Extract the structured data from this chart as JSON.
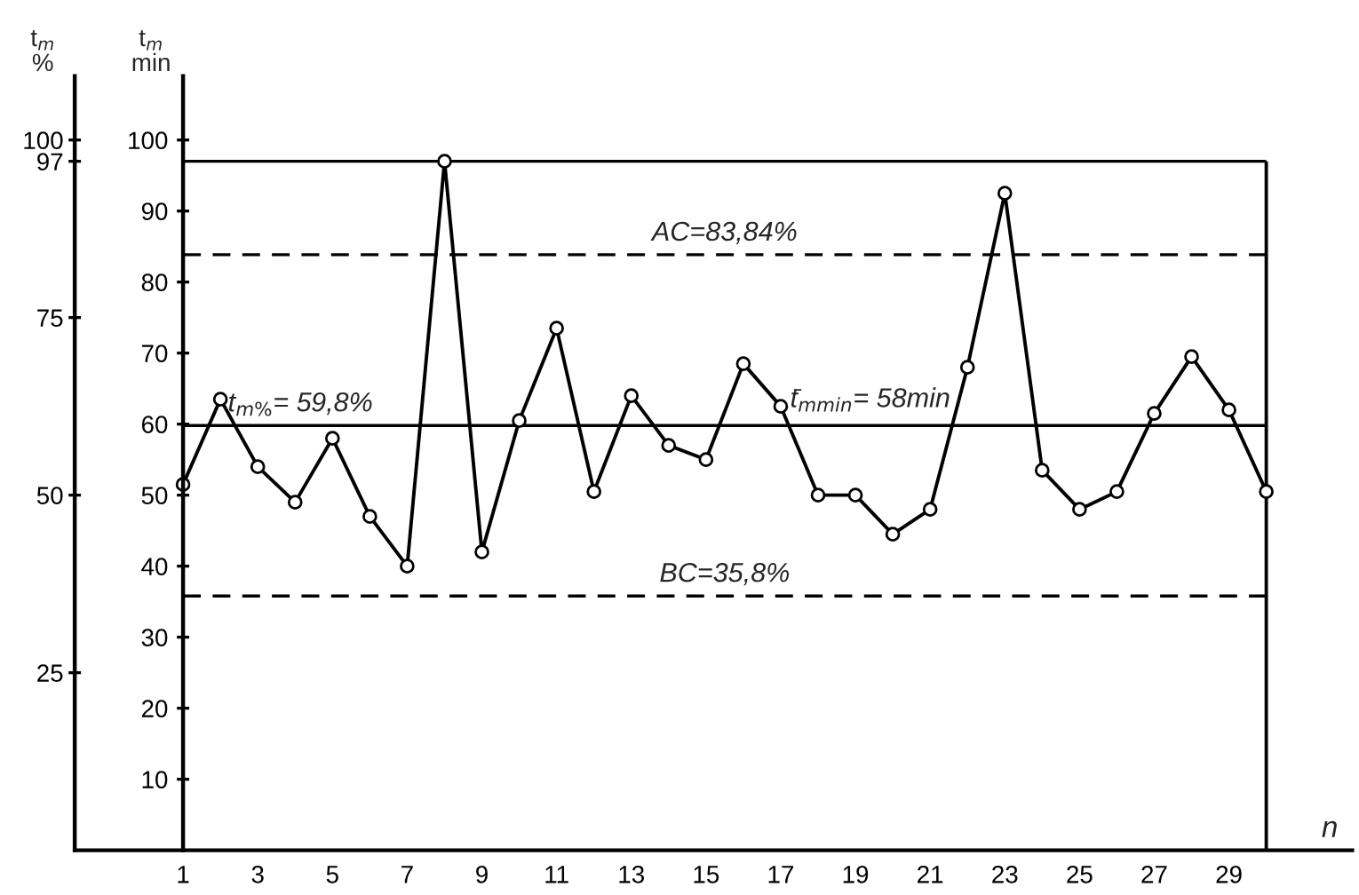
{
  "chart_data": {
    "type": "line",
    "x": [
      1,
      2,
      3,
      4,
      5,
      6,
      7,
      8,
      9,
      10,
      11,
      12,
      13,
      14,
      15,
      16,
      17,
      18,
      19,
      20,
      21,
      22,
      23,
      24,
      25,
      26,
      27,
      28,
      29,
      30
    ],
    "series": [
      {
        "color": "#000000",
        "values": [
          51.5,
          63.5,
          54,
          49,
          58,
          47,
          40,
          97,
          42,
          60.5,
          73.5,
          50.5,
          64,
          57,
          55,
          68.5,
          62.5,
          50,
          50,
          44.5,
          48,
          68,
          92.5,
          53.5,
          48,
          50.5,
          61.5,
          69.5,
          62,
          50.5
        ]
      }
    ],
    "xlabel": "n",
    "ylabel": "t$_{m}$\nmin",
    "y2label": "t$_{m}$\n%",
    "xlim": [
      -1.9,
      32.3
    ],
    "xticks": [
      1,
      3,
      5,
      7,
      9,
      11,
      13,
      15,
      17,
      19,
      21,
      23,
      25,
      27,
      29
    ],
    "ylim": [
      0,
      109
    ],
    "yticks": [
      10,
      20,
      30,
      40,
      50,
      60,
      70,
      80,
      90,
      100
    ],
    "y2lim": [
      0,
      109
    ],
    "y2ticks": [
      25,
      50,
      75,
      97,
      100
    ],
    "ref_lines": [
      {
        "axis": "x",
        "value": 30,
        "line_style": "solid"
      },
      {
        "axis": "y2",
        "value": 97,
        "line_style": "solid"
      },
      {
        "axis": "y2",
        "value": 83.84,
        "label": "AC=83,84%",
        "line_style": "dashed"
      },
      {
        "axis": "y2",
        "value": 59.8,
        "label": "t$_{m%}$= 59,8%",
        "line_style": "solid"
      },
      {
        "axis": "y2",
        "value": 35.8,
        "label": "BC=35,8%",
        "line_style": "dashed"
      }
    ],
    "annotations": [
      "t̄$_{mmin}$= 58min"
    ],
    "marker": "circle",
    "line_style": "solid",
    "grid": false,
    "legend": false
  }
}
